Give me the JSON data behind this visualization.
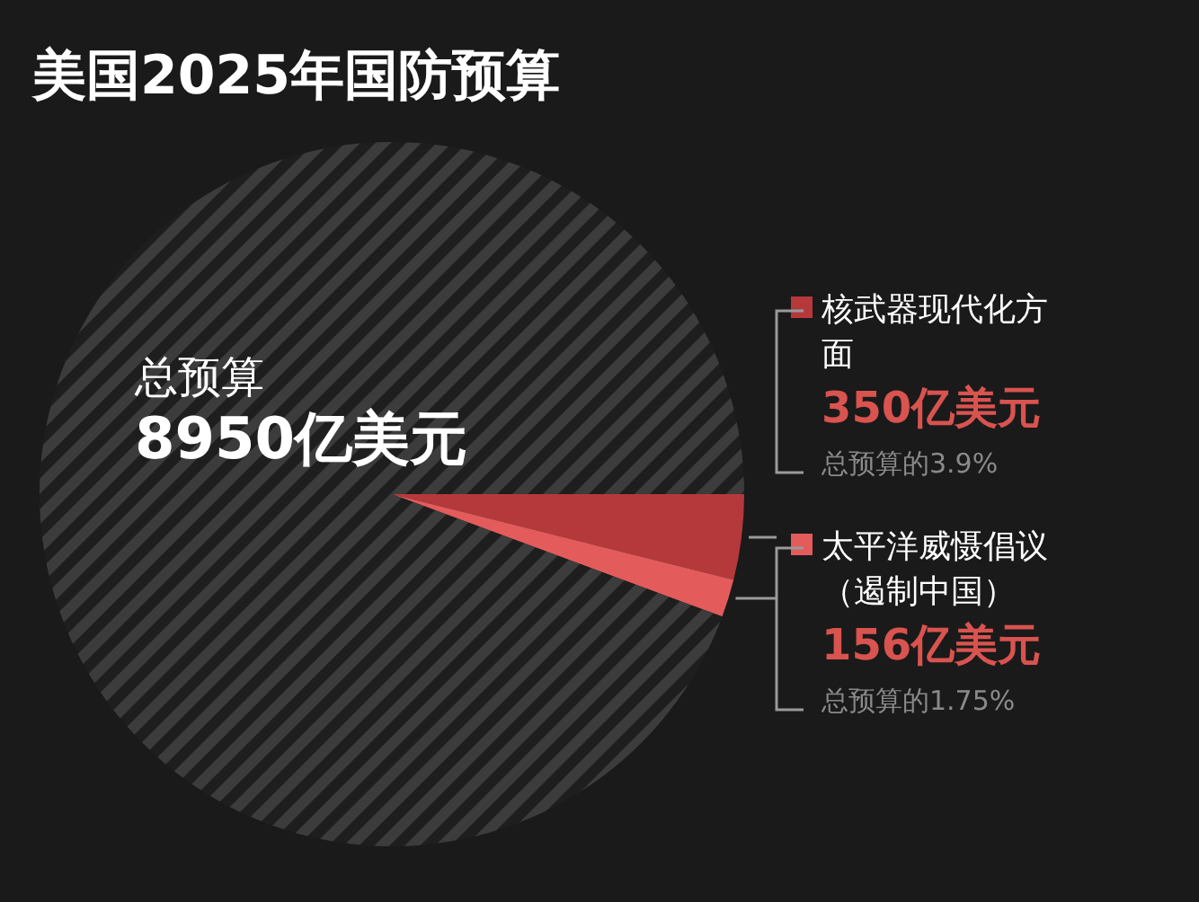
{
  "chart_data": {
    "type": "pie",
    "title": "美国2025年国防预算",
    "categories": [
      "核武器现代化方面",
      "太平洋威慑倡议（遏制中国）",
      null
    ],
    "values": [
      350,
      156,
      8444
    ],
    "colors": [
      "#b5393b",
      "#e35b5b",
      "#3c3c3c"
    ],
    "value_labels": [
      "350亿美元",
      "156亿美元",
      null
    ],
    "legend": "right",
    "annotations": [
      "总预算",
      "8950亿美元",
      "总预算的3.9%",
      "总预算的1.75%"
    ]
  }
}
